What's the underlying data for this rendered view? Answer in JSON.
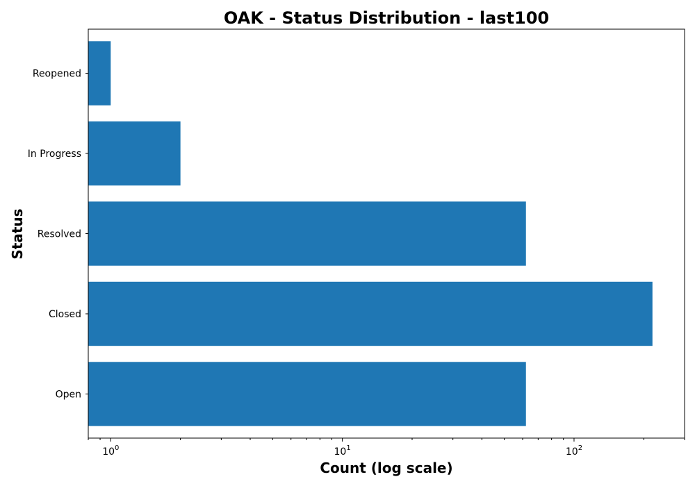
{
  "chart_data": {
    "type": "bar",
    "orientation": "horizontal",
    "title": "OAK - Status Distribution - last100",
    "xlabel": "Count (log scale)",
    "ylabel": "Status",
    "x_scale": "log",
    "xlim": [
      0.8,
      300
    ],
    "categories": [
      "Open",
      "Closed",
      "Resolved",
      "In Progress",
      "Reopened"
    ],
    "values": [
      62,
      218,
      62,
      2,
      1
    ],
    "x_ticks": [
      {
        "base": "10",
        "exp": "0",
        "value": 1
      },
      {
        "base": "10",
        "exp": "1",
        "value": 10
      },
      {
        "base": "10",
        "exp": "2",
        "value": 100
      }
    ],
    "bar_color": "#1f77b4",
    "grid": false,
    "legend": "none"
  }
}
